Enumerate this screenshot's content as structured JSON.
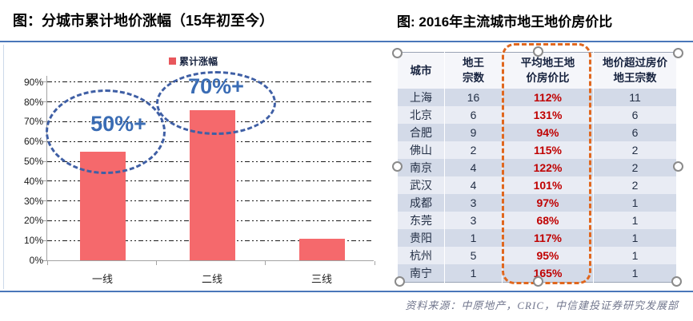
{
  "footer": {
    "source_text": "资料来源：中原地产，CRIC，中信建投证券研究发展部"
  },
  "colors": {
    "bar": "#f5696c",
    "accent_line": "#4a77b9",
    "annotation_blue": "#3a6cb4",
    "highlight_orange": "#e0671e",
    "percent_red": "#c00000"
  },
  "chart_data": [
    {
      "type": "bar",
      "title": "图：分城市累计地价涨幅（15年初至今）",
      "categories": [
        "一线",
        "二线",
        "三线"
      ],
      "series": [
        {
          "name": "累计涨幅",
          "values": [
            55,
            76,
            11
          ]
        }
      ],
      "xlabel": "",
      "ylabel": "",
      "ylim": [
        0,
        90
      ],
      "y_ticks": [
        "0%",
        "10%",
        "20%",
        "30%",
        "40%",
        "50%",
        "60%",
        "70%",
        "80%",
        "90%"
      ],
      "grid": "horizontal-dash-dot",
      "legend_position": "top",
      "bar_color": "#f5696c",
      "annotations": [
        {
          "text": "50%+",
          "target": "一线"
        },
        {
          "text": "70%+",
          "target": "二线"
        }
      ]
    },
    {
      "type": "table",
      "title": "图: 2016年主流城市地王地价房价比",
      "columns": [
        "城市",
        "地王\n宗数",
        "平均地王地\n价房价比",
        "地价超过房价\n地王宗数"
      ],
      "highlighted_column": "平均地王地价房价比",
      "rows": [
        [
          "上海",
          "16",
          "112%",
          "11"
        ],
        [
          "北京",
          "6",
          "131%",
          "6"
        ],
        [
          "合肥",
          "9",
          "94%",
          "6"
        ],
        [
          "佛山",
          "2",
          "115%",
          "2"
        ],
        [
          "南京",
          "4",
          "122%",
          "2"
        ],
        [
          "武汉",
          "4",
          "101%",
          "2"
        ],
        [
          "成都",
          "3",
          "97%",
          "1"
        ],
        [
          "东莞",
          "3",
          "68%",
          "1"
        ],
        [
          "贵阳",
          "1",
          "117%",
          "1"
        ],
        [
          "杭州",
          "5",
          "95%",
          "1"
        ],
        [
          "南宁",
          "1",
          "165%",
          "1"
        ]
      ]
    }
  ]
}
